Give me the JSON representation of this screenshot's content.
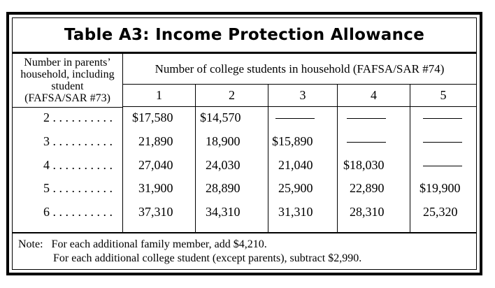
{
  "title": "Table A3:  Income Protection Allowance",
  "row_header": {
    "lines": [
      "Number in parents’",
      "household, including",
      "student",
      "(FAFSA/SAR #73)"
    ]
  },
  "column_group_header": "Number of college students in household (FAFSA/SAR #74)",
  "columns": [
    "1",
    "2",
    "3",
    "4",
    "5"
  ],
  "rows": [
    {
      "label": "2 . . . . . . . . . .",
      "values": [
        "$17,580",
        "$14,570",
        "",
        "",
        ""
      ]
    },
    {
      "label": "3 . . . . . . . . . .",
      "values": [
        "21,890",
        "18,900",
        "$15,890",
        "",
        ""
      ]
    },
    {
      "label": "4 . . . . . . . . . .",
      "values": [
        "27,040",
        "24,030",
        "21,040",
        "$18,030",
        ""
      ]
    },
    {
      "label": "5 . . . . . . . . . .",
      "values": [
        "31,900",
        "28,890",
        "25,900",
        "22,890",
        "$19,900"
      ]
    },
    {
      "label": "6 . . . . . . . . . .",
      "values": [
        "37,310",
        "34,310",
        "31,310",
        "28,310",
        "25,320"
      ]
    }
  ],
  "notes": {
    "prefix": "Note:",
    "line1": "For each additional family member, add $4,210.",
    "line2": "For each additional college student (except parents), subtract $2,990."
  }
}
